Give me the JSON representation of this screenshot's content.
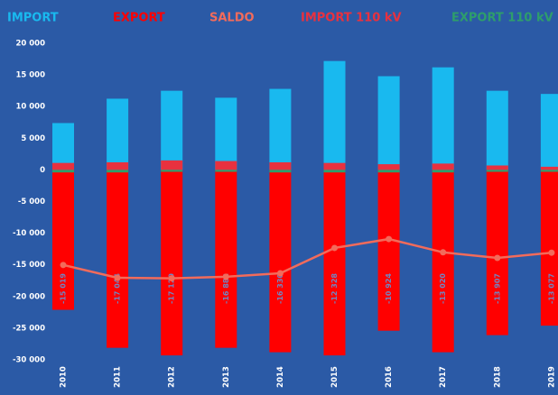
{
  "chart_data": {
    "type": "bar",
    "categories": [
      "2010",
      "2011",
      "2012",
      "2013",
      "2014",
      "2015",
      "2016",
      "2017",
      "2018",
      "2019"
    ],
    "series": [
      {
        "name": "IMPORT",
        "color": "#19b9ef",
        "values": [
          7400,
          11250,
          12500,
          11400,
          12800,
          17200,
          14800,
          16200,
          12500,
          12000
        ]
      },
      {
        "name": "EXPORT",
        "color": "#ff0000",
        "values": [
          -22100,
          -28100,
          -29300,
          -28100,
          -28800,
          -29300,
          -25400,
          -28800,
          -26100,
          -24600
        ]
      },
      {
        "name": "SALDO",
        "color": "#f26b5b",
        "type": "line",
        "values": [
          -15019,
          -17044,
          -17120,
          -16882,
          -16330,
          -12328,
          -10924,
          -13020,
          -13907,
          -13077
        ],
        "value_labels": [
          "-15 019",
          "-17 044",
          "-17 120",
          "-16 882",
          "-16 330",
          "-12 328",
          "-10 924",
          "-13 020",
          "-13 907",
          "-13 077"
        ]
      },
      {
        "name": "IMPORT 110 kV",
        "color": "#e8313f",
        "values": [
          1100,
          1200,
          1500,
          1400,
          1200,
          1100,
          900,
          1000,
          700,
          500
        ]
      },
      {
        "name": "EXPORT 110 kV",
        "color": "#2e9e6b",
        "values": [
          -400,
          -400,
          -300,
          -300,
          -400,
          -400,
          -400,
          -400,
          -300,
          -300
        ]
      }
    ],
    "ylim": [
      -30000,
      20000
    ],
    "yticks": [
      {
        "value": -30000,
        "label": "-30 000"
      },
      {
        "value": -25000,
        "label": "-25 000"
      },
      {
        "value": -20000,
        "label": "-20 000"
      },
      {
        "value": -15000,
        "label": "-15 000"
      },
      {
        "value": -10000,
        "label": "-10 000"
      },
      {
        "value": -5000,
        "label": "-5 000"
      },
      0,
      {
        "value": 5000,
        "label": "5 000"
      },
      {
        "value": 10000,
        "label": "10 000"
      },
      {
        "value": 15000,
        "label": "15 000"
      },
      {
        "value": 20000,
        "label": "20 000"
      }
    ],
    "grid": false
  }
}
